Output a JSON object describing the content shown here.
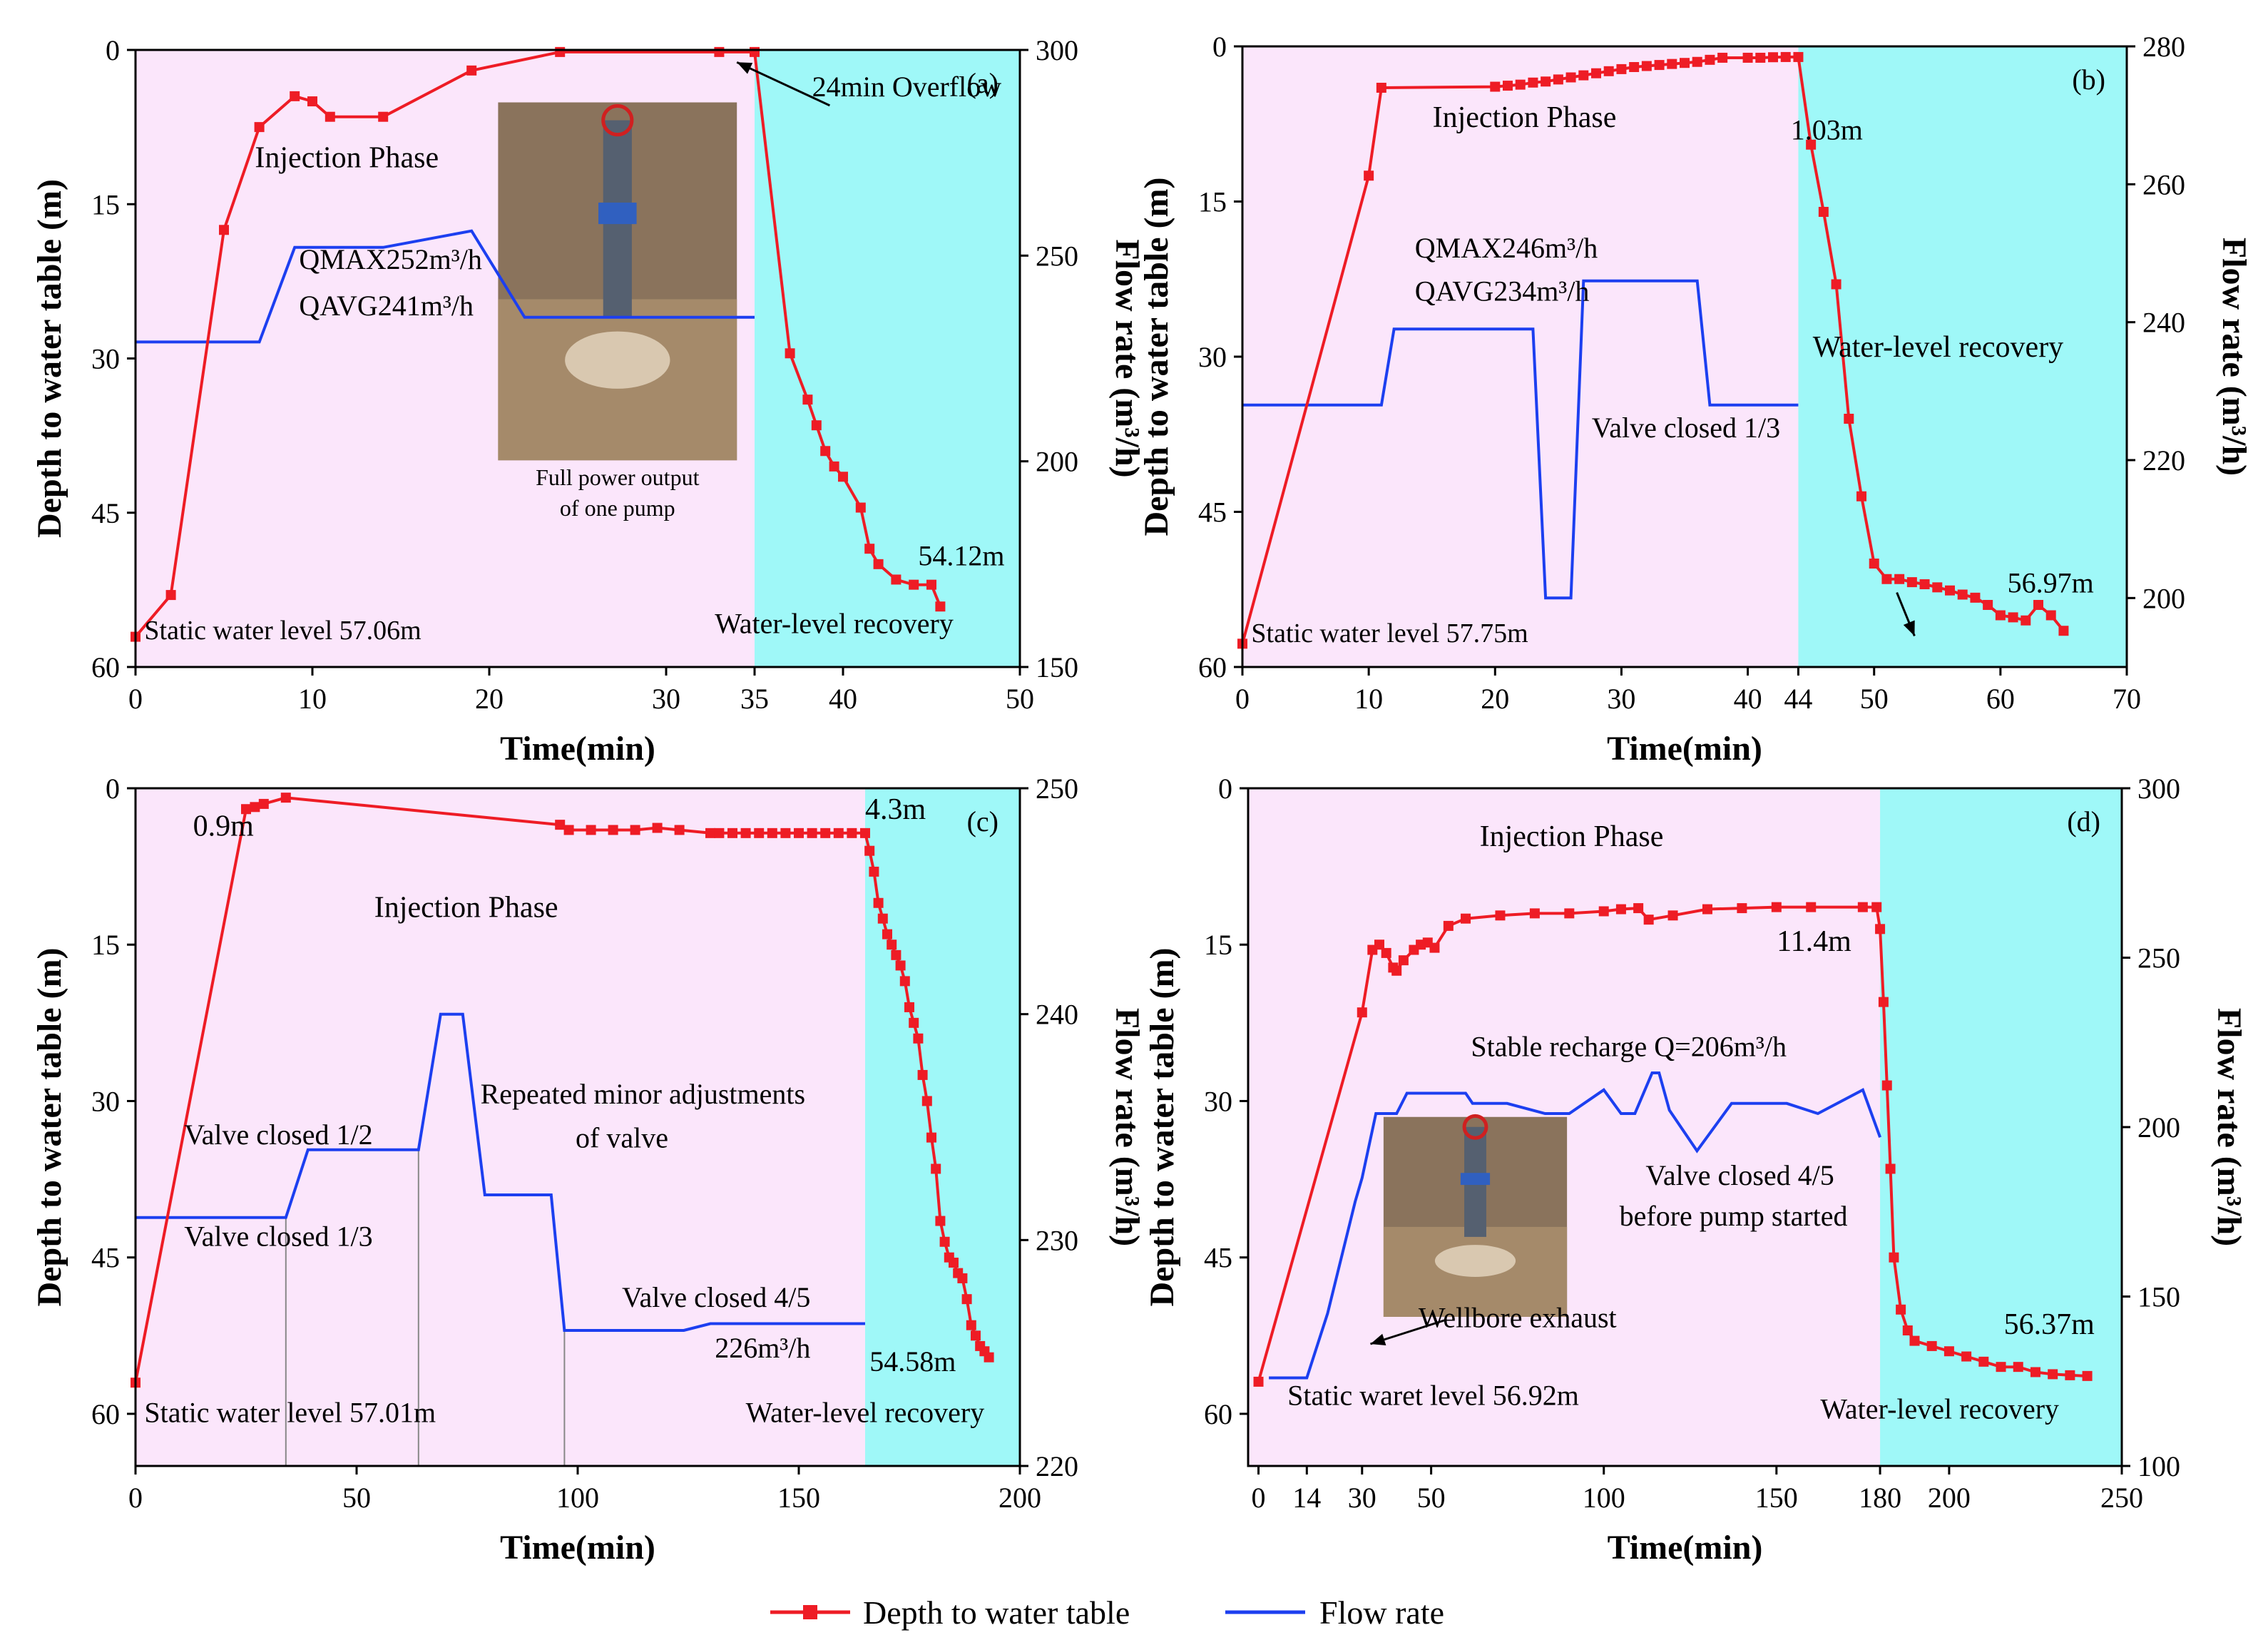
{
  "legend": {
    "depth_label": "Depth to water table",
    "flow_label": "Flow rate",
    "depth_color": "#ee1c25",
    "flow_color": "#1c3ff0"
  },
  "colors": {
    "injection_bg": "#fbe6fb",
    "recovery_bg": "#9ff8f8"
  },
  "chart_data": [
    {
      "type": "line",
      "panel": "(a)",
      "xlabel": "Time(min)",
      "ylabel": "Depth to water table (m)",
      "y2label": "Flow rate (m³/h)",
      "xlim": [
        0,
        50
      ],
      "ylim": [
        60,
        0
      ],
      "y2lim": [
        150,
        300
      ],
      "x_ticks": [
        "0",
        "10",
        "20",
        "30",
        "35",
        "40",
        "50"
      ],
      "x_tick_values": [
        0,
        10,
        20,
        30,
        35,
        40,
        50
      ],
      "y_ticks": [
        "0",
        "15",
        "30",
        "45",
        "60"
      ],
      "y2_ticks": [
        "150",
        "200",
        "250",
        "300"
      ],
      "recovery_start": 35,
      "series": [
        {
          "name": "Depth to water table",
          "axis": "left",
          "markers": true,
          "x": [
            0,
            2,
            5,
            7,
            9,
            10,
            11,
            14,
            19,
            24,
            33,
            35,
            37,
            38,
            38.5,
            39,
            39.5,
            40,
            41,
            41.5,
            42,
            43,
            44,
            45,
            45.5
          ],
          "y": [
            57.06,
            53,
            17.5,
            7.5,
            4.5,
            5,
            6.5,
            6.5,
            2,
            0.2,
            0.2,
            0.2,
            29.5,
            34,
            36.5,
            39,
            40.5,
            41.5,
            44.5,
            48.5,
            50,
            51.5,
            52,
            52,
            54.12
          ]
        },
        {
          "name": "Flow rate",
          "axis": "right",
          "x": [
            0,
            7,
            9,
            14,
            19,
            22,
            35
          ],
          "y": [
            229,
            229,
            252,
            252,
            256,
            235,
            235
          ]
        }
      ],
      "annotations": [
        {
          "text": "24min Overflow"
        },
        {
          "text": "Injection Phase"
        },
        {
          "text": "QMAX252m³/h"
        },
        {
          "text": "QAVG241m³/h"
        },
        {
          "text": "Full power output"
        },
        {
          "text": "of one pump"
        },
        {
          "text": "Static water level 57.06m"
        },
        {
          "text": "Water-level recovery"
        },
        {
          "text": "54.12m"
        }
      ]
    },
    {
      "type": "line",
      "panel": "(b)",
      "xlabel": "Time(min)",
      "ylabel": "Depth to water table (m)",
      "y2label": "Flow rate (m³/h)",
      "xlim": [
        0,
        70
      ],
      "ylim": [
        60,
        0
      ],
      "y2lim": [
        190,
        280
      ],
      "x_ticks": [
        "0",
        "10",
        "20",
        "30",
        "40",
        "44",
        "50",
        "60",
        "70"
      ],
      "x_tick_values": [
        0,
        10,
        20,
        30,
        40,
        44,
        50,
        60,
        70
      ],
      "y_ticks": [
        "0",
        "15",
        "30",
        "45",
        "60"
      ],
      "y2_ticks": [
        "200",
        "220",
        "240",
        "260",
        "280"
      ],
      "recovery_start": 44,
      "series": [
        {
          "name": "Depth to water table",
          "axis": "left",
          "markers": true,
          "x": [
            0,
            10,
            11,
            20,
            21,
            22,
            23,
            24,
            25,
            26,
            27,
            28,
            29,
            30,
            31,
            32,
            33,
            34,
            35,
            36,
            37,
            38,
            40,
            41,
            42,
            43,
            44,
            45,
            46,
            47,
            48,
            49,
            50,
            51,
            52,
            53,
            54,
            55,
            56,
            57,
            58,
            59,
            60,
            61,
            62,
            63,
            64,
            65
          ],
          "y": [
            57.75,
            12.5,
            4,
            3.9,
            3.8,
            3.7,
            3.5,
            3.4,
            3.2,
            3,
            2.8,
            2.6,
            2.4,
            2.2,
            2,
            1.9,
            1.8,
            1.7,
            1.6,
            1.5,
            1.3,
            1.1,
            1.1,
            1.1,
            1.05,
            1.03,
            1.03,
            9.5,
            16,
            23,
            36,
            43.5,
            50,
            51.5,
            51.5,
            51.8,
            52,
            52.3,
            52.6,
            53,
            53.3,
            54,
            55,
            55.2,
            55.5,
            54,
            55,
            56.5
          ]
        },
        {
          "name": "Flow rate",
          "axis": "right",
          "x": [
            0,
            11,
            12,
            23,
            24,
            26,
            27,
            36,
            37,
            44
          ],
          "y": [
            228,
            228,
            239,
            239,
            200,
            200,
            246,
            246,
            228,
            228
          ]
        }
      ],
      "annotations": [
        {
          "text": "1.03m"
        },
        {
          "text": "Injection Phase"
        },
        {
          "text": "QMAX246m³/h"
        },
        {
          "text": "QAVG234m³/h"
        },
        {
          "text": "Valve closed 1/3"
        },
        {
          "text": "Water-level recovery"
        },
        {
          "text": "Static water level 57.75m"
        },
        {
          "text": "56.97m"
        }
      ]
    },
    {
      "type": "line",
      "panel": "(c)",
      "xlabel": "Time(min)",
      "ylabel": "Depth to water table (m)",
      "y2label": "Flow rate (m³/h)",
      "xlim": [
        0,
        200
      ],
      "ylim": [
        65,
        0
      ],
      "y2lim": [
        220,
        250
      ],
      "x_ticks": [
        "0",
        "50",
        "100",
        "150",
        "200"
      ],
      "x_tick_values": [
        0,
        50,
        100,
        150,
        200
      ],
      "y_ticks": [
        "0",
        "15",
        "30",
        "45",
        "60"
      ],
      "y_tick_values": [
        0,
        15,
        30,
        45,
        60
      ],
      "y2_ticks": [
        "220",
        "230",
        "240",
        "250"
      ],
      "recovery_start": 165,
      "series": [
        {
          "name": "Depth to water table",
          "axis": "left",
          "markers": true,
          "x": [
            0,
            25,
            27,
            29,
            34,
            96,
            98,
            103,
            108,
            113,
            118,
            123,
            130,
            132,
            135,
            138,
            141,
            144,
            147,
            150,
            153,
            156,
            159,
            162,
            165,
            166,
            167,
            168,
            169,
            170,
            171,
            172,
            173,
            174,
            175,
            176,
            177,
            178,
            179,
            180,
            181,
            182,
            183,
            184,
            185,
            186,
            187,
            188,
            189,
            190,
            191,
            192,
            193
          ],
          "y": [
            57.01,
            2,
            1.8,
            1.5,
            0.9,
            3.5,
            4,
            4,
            4,
            4,
            3.8,
            4,
            4.3,
            4.3,
            4.3,
            4.3,
            4.3,
            4.3,
            4.3,
            4.3,
            4.3,
            4.3,
            4.3,
            4.3,
            4.3,
            6,
            8,
            11,
            12.5,
            14,
            15,
            16,
            17,
            18.5,
            21,
            22.5,
            24,
            27.5,
            30,
            33.5,
            36.5,
            41.5,
            43.5,
            45,
            45.5,
            46.5,
            47,
            49,
            51.5,
            52.5,
            53.5,
            54,
            54.58
          ]
        },
        {
          "name": "Flow rate",
          "axis": "right",
          "x": [
            0,
            34,
            39,
            64,
            69,
            74,
            79,
            94,
            97,
            124,
            130,
            165
          ],
          "y": [
            231,
            231,
            234,
            234,
            240,
            240,
            232,
            232,
            226,
            226,
            226.3,
            226.3
          ]
        }
      ],
      "annotations": [
        {
          "text": "0.9m"
        },
        {
          "text": "4.3m"
        },
        {
          "text": "Injection Phase"
        },
        {
          "text": "Repeated minor adjustments"
        },
        {
          "text": "of valve"
        },
        {
          "text": "Valve closed 1/2"
        },
        {
          "text": "Valve closed 1/3"
        },
        {
          "text": "Valve closed 4/5"
        },
        {
          "text": "226m³/h"
        },
        {
          "text": "54.58m"
        },
        {
          "text": "Static water level 57.01m"
        },
        {
          "text": "Water-level recovery"
        }
      ]
    },
    {
      "type": "line",
      "panel": "(d)",
      "xlabel": "Time(min)",
      "ylabel": "Depth to water table (m)",
      "y2label": "Flow rate (m³/h)",
      "xlim": [
        -3,
        250
      ],
      "ylim": [
        65,
        0
      ],
      "y2lim": [
        100,
        300
      ],
      "x_ticks": [
        "0",
        "14",
        "30",
        "50",
        "100",
        "150",
        "180",
        "200",
        "250"
      ],
      "x_tick_values": [
        0,
        14,
        30,
        50,
        100,
        150,
        180,
        200,
        250
      ],
      "y_ticks": [
        "0",
        "15",
        "30",
        "45",
        "60"
      ],
      "y_tick_values": [
        0,
        15,
        30,
        45,
        60
      ],
      "y2_ticks": [
        "100",
        "150",
        "200",
        "250",
        "300"
      ],
      "recovery_start": 180,
      "series": [
        {
          "name": "Depth to water table",
          "axis": "left",
          "markers": true,
          "x": [
            0,
            30,
            33,
            35,
            37,
            39,
            40,
            42,
            45,
            47,
            49,
            51,
            55,
            60,
            70,
            80,
            90,
            100,
            105,
            110,
            113,
            120,
            130,
            140,
            150,
            160,
            175,
            179,
            180,
            181,
            182,
            183,
            184,
            186,
            188,
            190,
            195,
            200,
            205,
            210,
            215,
            220,
            225,
            230,
            235,
            240
          ],
          "y": [
            56.92,
            21.5,
            15.5,
            15,
            15.8,
            17.2,
            17.5,
            16.5,
            15.5,
            15,
            14.8,
            15.3,
            13.2,
            12.5,
            12.2,
            12,
            12,
            11.8,
            11.6,
            11.5,
            12.6,
            12.2,
            11.6,
            11.5,
            11.4,
            11.4,
            11.4,
            11.4,
            13.5,
            20.5,
            28.5,
            36.5,
            45,
            50,
            52,
            53,
            53.5,
            54,
            54.5,
            55,
            55.5,
            55.5,
            56,
            56.2,
            56.3,
            56.37
          ]
        },
        {
          "name": "Flow rate",
          "axis": "right",
          "x": [
            3,
            14,
            20,
            28,
            30,
            34,
            40,
            43,
            60,
            62,
            72,
            83,
            90,
            100,
            105,
            109,
            114,
            116,
            119,
            127,
            137,
            153,
            162,
            175,
            180
          ],
          "y": [
            126,
            126,
            145,
            178,
            185,
            204,
            204,
            210,
            210,
            207,
            207,
            204,
            204,
            211,
            204,
            204,
            216,
            216,
            205,
            193,
            207,
            207,
            204,
            211,
            197
          ]
        }
      ],
      "annotations": [
        {
          "text": "Injection Phase"
        },
        {
          "text": "11.4m"
        },
        {
          "text": "Stable recharge Q=206m³/h"
        },
        {
          "text": "Valve closed 4/5"
        },
        {
          "text": "before pump started"
        },
        {
          "text": "Wellbore exhaust"
        },
        {
          "text": "Static waret level 56.92m"
        },
        {
          "text": "Water-level recovery"
        },
        {
          "text": "56.37m"
        }
      ]
    }
  ]
}
